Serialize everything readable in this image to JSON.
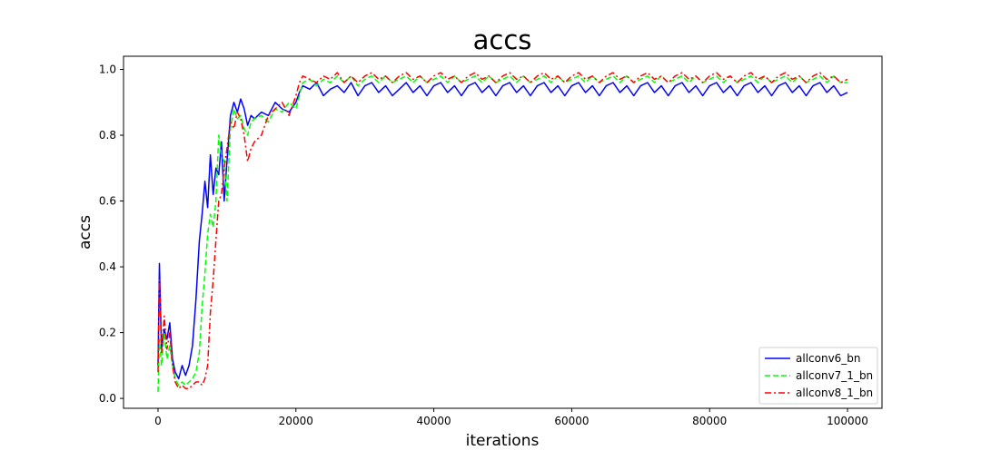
{
  "chart_data": {
    "type": "line",
    "title": "accs",
    "xlabel": "iterations",
    "ylabel": "accs",
    "xlim": [
      -5000,
      105000
    ],
    "ylim": [
      -0.03,
      1.04
    ],
    "xticks": [
      0,
      20000,
      40000,
      60000,
      80000,
      100000
    ],
    "xtick_labels": [
      "0",
      "20000",
      "40000",
      "60000",
      "80000",
      "100000"
    ],
    "yticks": [
      0.0,
      0.2,
      0.4,
      0.6,
      0.8,
      1.0
    ],
    "ytick_labels": [
      "0.0",
      "0.2",
      "0.4",
      "0.6",
      "0.8",
      "1.0"
    ],
    "grid": false,
    "legend_position": "lower-right",
    "series": [
      {
        "name": "allconv6_bn",
        "color": "#0000ff",
        "dash": "solid",
        "x": [
          0,
          200,
          500,
          900,
          1300,
          1700,
          2100,
          2500,
          3000,
          3500,
          4000,
          4500,
          5000,
          5500,
          6000,
          6400,
          6800,
          7200,
          7600,
          8000,
          8400,
          8800,
          9200,
          9600,
          10000,
          10500,
          11000,
          11500,
          12000,
          12500,
          13000,
          13500,
          14000,
          15000,
          16000,
          17000,
          18000,
          19000,
          20000,
          20500,
          21000,
          22000,
          23000,
          24000,
          25000,
          26000,
          27000,
          28000,
          29000,
          30000,
          31000,
          32000,
          33000,
          34000,
          35000,
          36000,
          37000,
          38000,
          39000,
          40000,
          41000,
          42000,
          43000,
          44000,
          45000,
          46000,
          47000,
          48000,
          49000,
          50000,
          51000,
          52000,
          53000,
          54000,
          55000,
          56000,
          57000,
          58000,
          59000,
          60000,
          61000,
          62000,
          63000,
          64000,
          65000,
          66000,
          67000,
          68000,
          69000,
          70000,
          71000,
          72000,
          73000,
          74000,
          75000,
          76000,
          77000,
          78000,
          79000,
          80000,
          81000,
          82000,
          83000,
          84000,
          85000,
          86000,
          87000,
          88000,
          89000,
          90000,
          91000,
          92000,
          93000,
          94000,
          95000,
          96000,
          97000,
          98000,
          99000,
          100000
        ],
        "y": [
          0.1,
          0.41,
          0.15,
          0.21,
          0.18,
          0.23,
          0.12,
          0.08,
          0.06,
          0.1,
          0.07,
          0.1,
          0.16,
          0.3,
          0.48,
          0.56,
          0.66,
          0.58,
          0.74,
          0.62,
          0.7,
          0.68,
          0.78,
          0.6,
          0.72,
          0.86,
          0.9,
          0.87,
          0.91,
          0.88,
          0.83,
          0.86,
          0.85,
          0.87,
          0.86,
          0.9,
          0.88,
          0.87,
          0.9,
          0.93,
          0.95,
          0.94,
          0.96,
          0.92,
          0.94,
          0.95,
          0.93,
          0.96,
          0.92,
          0.95,
          0.96,
          0.93,
          0.95,
          0.92,
          0.94,
          0.96,
          0.93,
          0.95,
          0.92,
          0.95,
          0.96,
          0.93,
          0.95,
          0.92,
          0.95,
          0.96,
          0.93,
          0.95,
          0.92,
          0.95,
          0.96,
          0.93,
          0.95,
          0.92,
          0.95,
          0.96,
          0.93,
          0.95,
          0.92,
          0.95,
          0.96,
          0.93,
          0.95,
          0.92,
          0.95,
          0.96,
          0.93,
          0.95,
          0.92,
          0.95,
          0.96,
          0.93,
          0.95,
          0.92,
          0.95,
          0.96,
          0.93,
          0.95,
          0.92,
          0.95,
          0.96,
          0.93,
          0.95,
          0.92,
          0.95,
          0.96,
          0.93,
          0.95,
          0.92,
          0.95,
          0.96,
          0.93,
          0.95,
          0.92,
          0.95,
          0.96,
          0.93,
          0.95,
          0.92,
          0.93
        ]
      },
      {
        "name": "allconv7_1_bn",
        "color": "#00ff00",
        "dash": "dashed",
        "x": [
          0,
          200,
          500,
          900,
          1300,
          1700,
          2100,
          2500,
          3000,
          3500,
          4000,
          4500,
          5000,
          5500,
          6000,
          6400,
          6800,
          7200,
          7600,
          8000,
          8400,
          8800,
          9200,
          9600,
          10000,
          10500,
          11000,
          11500,
          12000,
          12500,
          13000,
          13500,
          14000,
          15000,
          16000,
          17000,
          18000,
          19000,
          20000,
          20500,
          21000,
          22000,
          23000,
          24000,
          25000,
          26000,
          27000,
          28000,
          29000,
          30000,
          31000,
          32000,
          33000,
          34000,
          35000,
          36000,
          37000,
          38000,
          39000,
          40000,
          41000,
          42000,
          43000,
          44000,
          45000,
          46000,
          47000,
          48000,
          49000,
          50000,
          51000,
          52000,
          53000,
          54000,
          55000,
          56000,
          57000,
          58000,
          59000,
          60000,
          61000,
          62000,
          63000,
          64000,
          65000,
          66000,
          67000,
          68000,
          69000,
          70000,
          71000,
          72000,
          73000,
          74000,
          75000,
          76000,
          77000,
          78000,
          79000,
          80000,
          81000,
          82000,
          83000,
          84000,
          85000,
          86000,
          87000,
          88000,
          89000,
          90000,
          91000,
          92000,
          93000,
          94000,
          95000,
          96000,
          97000,
          98000,
          99000,
          100000
        ],
        "y": [
          0.02,
          0.18,
          0.1,
          0.2,
          0.12,
          0.16,
          0.1,
          0.06,
          0.04,
          0.05,
          0.04,
          0.05,
          0.06,
          0.08,
          0.14,
          0.28,
          0.38,
          0.5,
          0.56,
          0.52,
          0.6,
          0.8,
          0.74,
          0.72,
          0.6,
          0.82,
          0.88,
          0.85,
          0.86,
          0.82,
          0.8,
          0.84,
          0.85,
          0.86,
          0.84,
          0.88,
          0.87,
          0.9,
          0.88,
          0.92,
          0.96,
          0.97,
          0.95,
          0.97,
          0.96,
          0.98,
          0.96,
          0.98,
          0.95,
          0.97,
          0.98,
          0.96,
          0.98,
          0.96,
          0.97,
          0.98,
          0.96,
          0.98,
          0.96,
          0.97,
          0.98,
          0.96,
          0.98,
          0.96,
          0.97,
          0.98,
          0.96,
          0.98,
          0.96,
          0.97,
          0.98,
          0.96,
          0.98,
          0.96,
          0.97,
          0.98,
          0.96,
          0.98,
          0.96,
          0.97,
          0.98,
          0.96,
          0.98,
          0.96,
          0.97,
          0.98,
          0.96,
          0.98,
          0.96,
          0.97,
          0.98,
          0.96,
          0.98,
          0.96,
          0.97,
          0.98,
          0.96,
          0.98,
          0.96,
          0.97,
          0.98,
          0.96,
          0.98,
          0.96,
          0.97,
          0.98,
          0.96,
          0.98,
          0.96,
          0.97,
          0.98,
          0.96,
          0.98,
          0.96,
          0.97,
          0.98,
          0.96,
          0.98,
          0.96,
          0.96
        ]
      },
      {
        "name": "allconv8_1_bn",
        "color": "#ff0000",
        "dash": "dashdot",
        "x": [
          0,
          200,
          500,
          900,
          1300,
          1700,
          2100,
          2500,
          3000,
          3500,
          4000,
          4500,
          5000,
          5500,
          6000,
          6400,
          6800,
          7200,
          7600,
          8000,
          8400,
          8800,
          9200,
          9600,
          10000,
          10500,
          11000,
          11500,
          12000,
          12500,
          13000,
          13500,
          14000,
          15000,
          16000,
          17000,
          18000,
          19000,
          20000,
          20500,
          21000,
          22000,
          23000,
          24000,
          25000,
          26000,
          27000,
          28000,
          29000,
          30000,
          31000,
          32000,
          33000,
          34000,
          35000,
          36000,
          37000,
          38000,
          39000,
          40000,
          41000,
          42000,
          43000,
          44000,
          45000,
          46000,
          47000,
          48000,
          49000,
          50000,
          51000,
          52000,
          53000,
          54000,
          55000,
          56000,
          57000,
          58000,
          59000,
          60000,
          61000,
          62000,
          63000,
          64000,
          65000,
          66000,
          67000,
          68000,
          69000,
          70000,
          71000,
          72000,
          73000,
          74000,
          75000,
          76000,
          77000,
          78000,
          79000,
          80000,
          81000,
          82000,
          83000,
          84000,
          85000,
          86000,
          87000,
          88000,
          89000,
          90000,
          91000,
          92000,
          93000,
          94000,
          95000,
          96000,
          97000,
          98000,
          99000,
          100000
        ],
        "y": [
          0.08,
          0.36,
          0.14,
          0.25,
          0.15,
          0.2,
          0.1,
          0.05,
          0.03,
          0.04,
          0.03,
          0.03,
          0.04,
          0.05,
          0.05,
          0.04,
          0.06,
          0.1,
          0.26,
          0.36,
          0.48,
          0.6,
          0.62,
          0.7,
          0.76,
          0.84,
          0.82,
          0.87,
          0.85,
          0.8,
          0.72,
          0.76,
          0.78,
          0.8,
          0.86,
          0.88,
          0.9,
          0.86,
          0.92,
          0.96,
          0.98,
          0.97,
          0.96,
          0.98,
          0.97,
          0.99,
          0.96,
          0.98,
          0.96,
          0.98,
          0.99,
          0.97,
          0.98,
          0.96,
          0.98,
          0.99,
          0.97,
          0.98,
          0.96,
          0.98,
          0.99,
          0.97,
          0.98,
          0.96,
          0.98,
          0.99,
          0.97,
          0.98,
          0.96,
          0.98,
          0.99,
          0.97,
          0.98,
          0.96,
          0.98,
          0.99,
          0.97,
          0.98,
          0.96,
          0.98,
          0.99,
          0.97,
          0.98,
          0.96,
          0.98,
          0.99,
          0.97,
          0.98,
          0.96,
          0.98,
          0.99,
          0.97,
          0.98,
          0.96,
          0.98,
          0.99,
          0.97,
          0.98,
          0.96,
          0.98,
          0.99,
          0.97,
          0.98,
          0.96,
          0.98,
          0.99,
          0.97,
          0.98,
          0.96,
          0.98,
          0.99,
          0.97,
          0.98,
          0.96,
          0.98,
          0.99,
          0.97,
          0.98,
          0.96,
          0.97
        ]
      }
    ]
  }
}
